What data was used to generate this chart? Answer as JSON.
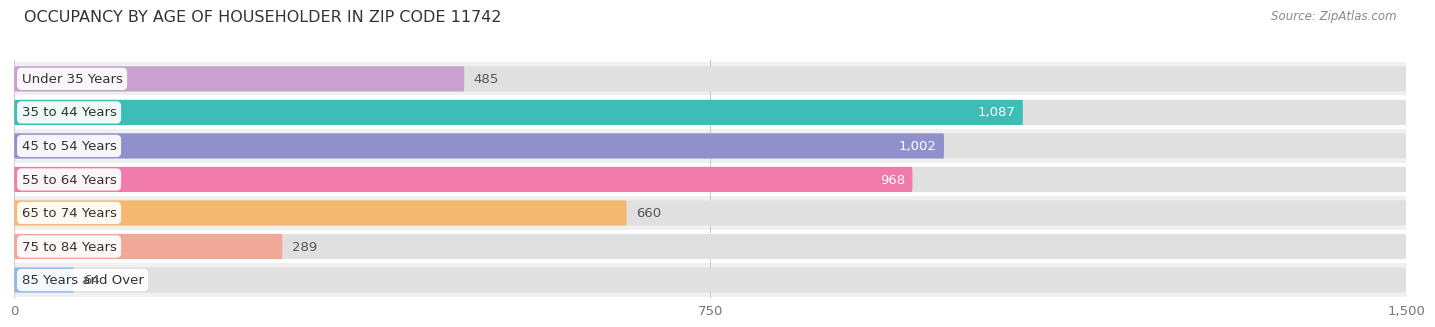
{
  "title": "OCCUPANCY BY AGE OF HOUSEHOLDER IN ZIP CODE 11742",
  "source": "Source: ZipAtlas.com",
  "categories": [
    "Under 35 Years",
    "35 to 44 Years",
    "45 to 54 Years",
    "55 to 64 Years",
    "65 to 74 Years",
    "75 to 84 Years",
    "85 Years and Over"
  ],
  "values": [
    485,
    1087,
    1002,
    968,
    660,
    289,
    64
  ],
  "bar_colors": [
    "#c9a0d0",
    "#3dbdb5",
    "#9090cc",
    "#f07aaa",
    "#f5b870",
    "#f0a898",
    "#90b8e8"
  ],
  "xlim_max": 1500,
  "xticks": [
    0,
    750,
    1500
  ],
  "bg_color": "#ffffff",
  "row_colors": [
    "#f0f0f0",
    "#ffffff"
  ],
  "bar_bg_color": "#e0e0e0",
  "title_fontsize": 11.5,
  "source_fontsize": 8.5,
  "label_fontsize": 9.5,
  "value_fontsize": 9.5,
  "tick_fontsize": 9.5,
  "value_inside_color": "#ffffff",
  "value_outside_color": "#555555",
  "value_inside_threshold": 750,
  "label_text_color": "#333333"
}
